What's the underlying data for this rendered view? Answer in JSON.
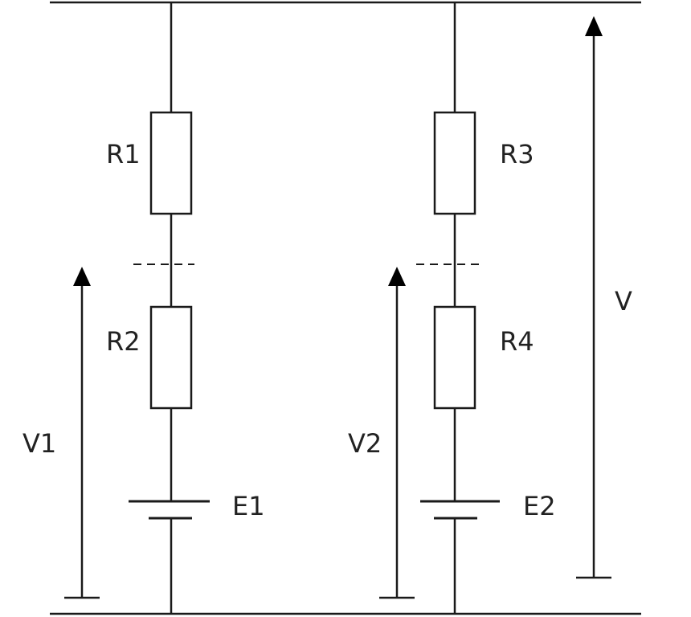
{
  "labels": {
    "r1": "R1",
    "r2": "R2",
    "r3": "R3",
    "r4": "R4",
    "e1": "E1",
    "e2": "E2",
    "v1": "V1",
    "v2": "V2",
    "v": "V"
  },
  "colors": {
    "line": "#1a1a1a",
    "text": "#222222",
    "background": "#ffffff"
  }
}
